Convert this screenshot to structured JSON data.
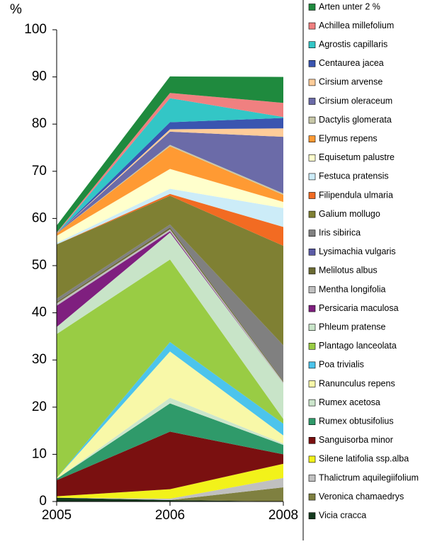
{
  "chart_data": {
    "type": "stacked-area",
    "y_label": "%",
    "categories": [
      "2005",
      "2006",
      "2008"
    ],
    "ylim": [
      0,
      100
    ],
    "yticks": [
      0,
      10,
      20,
      30,
      40,
      50,
      60,
      70,
      80,
      90,
      100
    ],
    "legend": "right",
    "series": [
      {
        "name": "Arten unter 2 %",
        "color": "#1f8a3e",
        "values": [
          1.5,
          3.5,
          5.5
        ]
      },
      {
        "name": "Achillea millefolium",
        "color": "#f08080",
        "values": [
          0.2,
          1.1,
          3
        ]
      },
      {
        "name": "Agrostis capillaris",
        "color": "#33c6c6",
        "values": [
          0,
          5.1,
          0.2
        ]
      },
      {
        "name": "Centaurea jacea",
        "color": "#3a55b0",
        "values": [
          0,
          1.5,
          2.2
        ]
      },
      {
        "name": "Cirsium arvense",
        "color": "#ffcc99",
        "values": [
          0,
          0.5,
          1.8
        ]
      },
      {
        "name": "Cirsium oleraceum",
        "color": "#6b6ba8",
        "values": [
          0,
          2.8,
          12
        ]
      },
      {
        "name": "Dactylis glomerata",
        "color": "#c8c8a8",
        "values": [
          0,
          0.3,
          0.3
        ]
      },
      {
        "name": "Elymus repens",
        "color": "#ff9a33",
        "values": [
          0.5,
          4.8,
          1.5
        ]
      },
      {
        "name": "Equisetum palustre",
        "color": "#ffffcc",
        "values": [
          1.5,
          4.2,
          1.3
        ]
      },
      {
        "name": "Festuca pratensis",
        "color": "#ccecf8",
        "values": [
          0.3,
          1.1,
          4
        ]
      },
      {
        "name": "Filipendula ulmaria",
        "color": "#f26b22",
        "values": [
          0,
          0.4,
          4
        ]
      },
      {
        "name": "Galium mollugo",
        "color": "#7f8033",
        "values": [
          11.5,
          6.1,
          21.1
        ]
      },
      {
        "name": "Iris sibirica",
        "color": "#808080",
        "values": [
          0.7,
          0.6,
          7.6
        ]
      },
      {
        "name": "Lysimachia vulgaris",
        "color": "#5c5ca6",
        "values": [
          0,
          0,
          0
        ]
      },
      {
        "name": "Melilotus albus",
        "color": "#6b6b33",
        "values": [
          0.3,
          0.4,
          0.2
        ]
      },
      {
        "name": "Mentha longifolia",
        "color": "#bfbfbf",
        "values": [
          0.5,
          0.4,
          0.3
        ]
      },
      {
        "name": "Persicaria maculosa",
        "color": "#7f1f7f",
        "values": [
          4.5,
          0.3,
          0
        ]
      },
      {
        "name": "Phleum pratense",
        "color": "#c8e4c8",
        "values": [
          1.5,
          5.7,
          7.5
        ]
      },
      {
        "name": "Plantago lanceolata",
        "color": "#99cc44",
        "values": [
          30.5,
          17.5,
          1
        ]
      },
      {
        "name": "Poa trivialis",
        "color": "#4cc4ec",
        "values": [
          0,
          2,
          2.5
        ]
      },
      {
        "name": "Ranunculus repens",
        "color": "#f8f8a8",
        "values": [
          0.2,
          9.8,
          1.7
        ]
      },
      {
        "name": "Rumex acetosa",
        "color": "#cce6cc",
        "values": [
          0,
          1.2,
          0.3
        ]
      },
      {
        "name": "Rumex obtusifolius",
        "color": "#2f9a6a",
        "values": [
          0.3,
          6,
          2
        ]
      },
      {
        "name": "Sanguisorba minor",
        "color": "#7a1010",
        "values": [
          3.4,
          12.2,
          2
        ]
      },
      {
        "name": "Silene latifolia ssp.alba",
        "color": "#f2f21a",
        "values": [
          0.3,
          2,
          3
        ]
      },
      {
        "name": "Thalictrum aquilegiifolium",
        "color": "#c0c0c0",
        "values": [
          0,
          0.3,
          2
        ]
      },
      {
        "name": "Veronica chamaedrys",
        "color": "#7f8040",
        "values": [
          0,
          0,
          3
        ]
      },
      {
        "name": "Vicia cracca",
        "color": "#143a1e",
        "values": [
          0.8,
          0.3,
          0
        ]
      }
    ]
  }
}
